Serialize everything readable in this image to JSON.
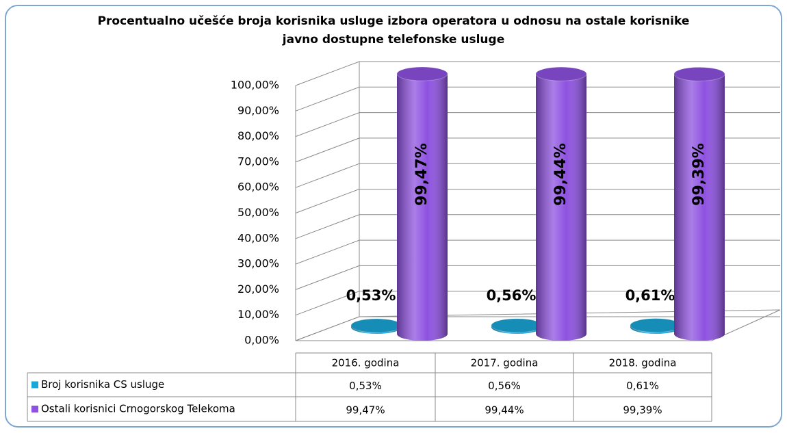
{
  "chart_data": {
    "type": "bar3d",
    "title": "Procentualno učešće broja korisnika usluge izbora operatora u odnosu na ostale korisnike",
    "subtitle": "javno dostupne telefonske usluge",
    "categories": [
      "2016. godina",
      "2017. godina",
      "2018. godina"
    ],
    "series": [
      {
        "name": "Broj korisnika CS usluge",
        "color": "#1aa6d8",
        "values": [
          0.53,
          0.56,
          0.61
        ],
        "value_labels": [
          "0,53%",
          "0,56%",
          "0,61%"
        ]
      },
      {
        "name": "Ostali korisnici Crnogorskog Telekoma",
        "color": "#8e52e0",
        "values": [
          99.47,
          99.44,
          99.39
        ],
        "value_labels": [
          "99,47%",
          "99,44%",
          "99,39%"
        ]
      }
    ],
    "ylim": [
      0,
      100
    ],
    "yticks": [
      {
        "value": 0,
        "label": "0,00%"
      },
      {
        "value": 10,
        "label": "10,00%"
      },
      {
        "value": 20,
        "label": "20,00%"
      },
      {
        "value": 30,
        "label": "30,00%"
      },
      {
        "value": 40,
        "label": "40,00%"
      },
      {
        "value": 50,
        "label": "50,00%"
      },
      {
        "value": 60,
        "label": "60,00%"
      },
      {
        "value": 70,
        "label": "70,00%"
      },
      {
        "value": 80,
        "label": "80,00%"
      },
      {
        "value": 90,
        "label": "90,00%"
      },
      {
        "value": 100,
        "label": "100,00%"
      }
    ],
    "grid": true
  }
}
